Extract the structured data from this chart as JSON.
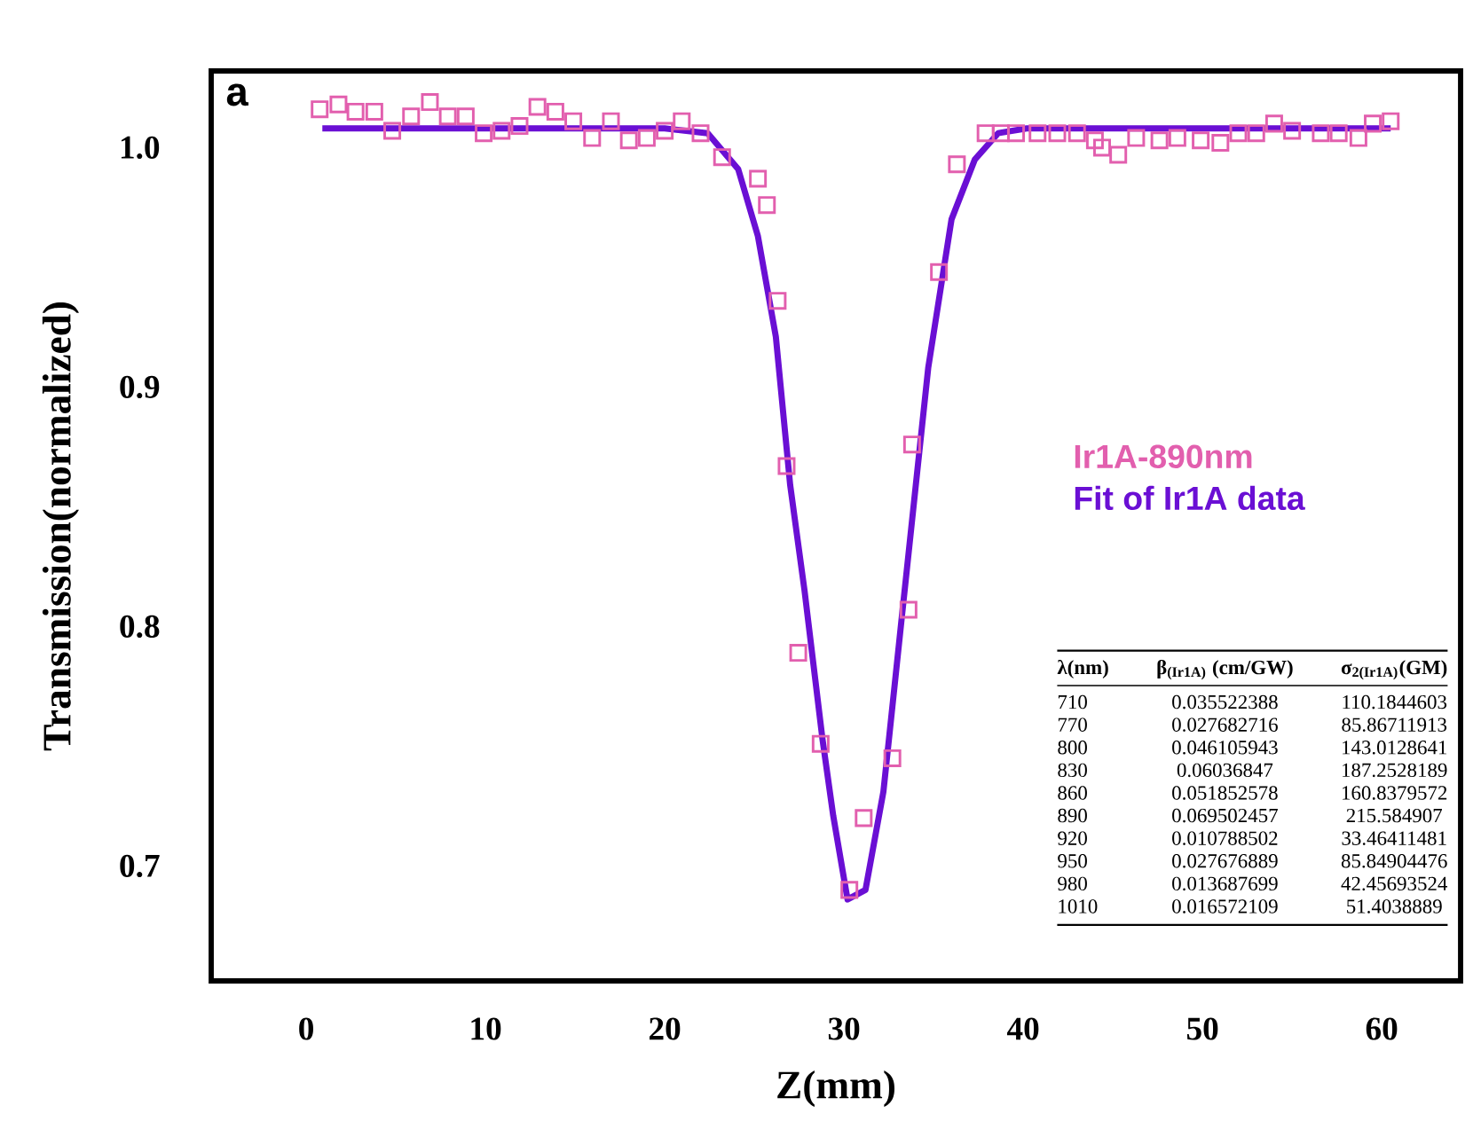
{
  "chart_data": {
    "type": "scatter",
    "xlabel": "Z(mm)",
    "ylabel": "Transmission(normalized)",
    "xlim": [
      -5.3,
      64.4
    ],
    "ylim": [
      0.652,
      1.032
    ],
    "xticks": [
      0,
      10,
      20,
      30,
      40,
      50,
      60
    ],
    "yticks": [
      {
        "value": 0.7,
        "label": "0.7"
      },
      {
        "value": 0.8,
        "label": "0.8"
      },
      {
        "value": 0.9,
        "label": "0.9"
      },
      {
        "value": 1.0,
        "label": "1.0"
      }
    ],
    "legend": "right",
    "grid": false,
    "series": [
      {
        "name": "Ir1A-890nm",
        "marker": "square",
        "color": "#e25fae",
        "x": [
          0.75,
          1.8,
          2.75,
          3.8,
          4.8,
          5.85,
          6.9,
          7.9,
          8.9,
          9.9,
          10.9,
          11.9,
          12.9,
          13.9,
          14.9,
          15.95,
          17.0,
          18.0,
          19.0,
          20.0,
          20.95,
          22.0,
          23.2,
          25.2,
          25.7,
          26.3,
          26.8,
          27.45,
          28.7,
          30.3,
          31.1,
          32.7,
          33.6,
          33.8,
          35.3,
          36.3,
          37.9,
          38.75,
          39.6,
          40.8,
          41.9,
          43.0,
          44.0,
          44.4,
          45.3,
          46.3,
          47.6,
          48.6,
          49.9,
          51.0,
          52.0,
          53.0,
          54.0,
          55.0,
          56.6,
          57.6,
          58.7,
          59.5,
          60.5
        ],
        "values": [
          1.016,
          1.018,
          1.015,
          1.015,
          1.007,
          1.013,
          1.019,
          1.013,
          1.013,
          1.006,
          1.007,
          1.009,
          1.017,
          1.015,
          1.011,
          1.004,
          1.011,
          1.003,
          1.004,
          1.007,
          1.011,
          1.006,
          0.996,
          0.987,
          0.976,
          0.936,
          0.867,
          0.789,
          0.751,
          0.69,
          0.72,
          0.745,
          0.807,
          0.876,
          0.948,
          0.993,
          1.006,
          1.006,
          1.006,
          1.006,
          1.006,
          1.006,
          1.003,
          1.0,
          0.997,
          1.004,
          1.003,
          1.004,
          1.003,
          1.002,
          1.006,
          1.006,
          1.01,
          1.007,
          1.006,
          1.006,
          1.004,
          1.01,
          1.011
        ]
      },
      {
        "name": "Fit of Ir1A data",
        "type": "line",
        "marker": "none",
        "line_style": "solid",
        "color": "#6a0fd4",
        "x": [
          0.9,
          10,
          20,
          22.4,
          24.1,
          25.2,
          26.2,
          27.0,
          27.8,
          28.8,
          29.4,
          30.2,
          31.2,
          32.2,
          33.2,
          34.7,
          36.0,
          37.3,
          38.6,
          40.2,
          50,
          60.5
        ],
        "values": [
          1.008,
          1.008,
          1.008,
          1.006,
          0.991,
          0.963,
          0.921,
          0.859,
          0.815,
          0.753,
          0.721,
          0.686,
          0.69,
          0.731,
          0.802,
          0.908,
          0.97,
          0.995,
          1.006,
          1.008,
          1.008,
          1.008
        ]
      }
    ],
    "annotations": [
      "a",
      "λ(nm)",
      "β$_{(Ir1A)}$ (cm/GW)",
      "σ$_{2(Ir1A)}$(GM)",
      "710",
      "0.035522388",
      "110.1844603",
      "770",
      "0.027682716",
      "85.86711913",
      "800",
      "0.046105943",
      "143.0128641",
      "830",
      "0.06036847",
      "187.2528189",
      "860",
      "0.051852578",
      "160.8379572",
      "890",
      "0.069502457",
      "215.584907",
      "920",
      "0.010788502",
      "33.46411481",
      "950",
      "0.027676889",
      "85.84904476",
      "980",
      "0.013687699",
      "42.45693524",
      "1010",
      "0.016572109",
      "51.4038889"
    ]
  }
}
